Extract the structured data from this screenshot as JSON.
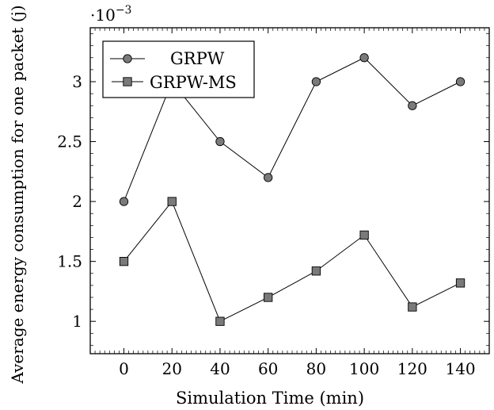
{
  "chart_data": {
    "type": "line",
    "xlabel": "Simulation Time (min)",
    "ylabel": "Average energy consumption for one packet (j)",
    "y_multiplier_label": "·10",
    "y_multiplier_exponent": "−3",
    "xlim": [
      -14,
      152
    ],
    "ylim": [
      0.73,
      3.45
    ],
    "x_ticks": [
      0,
      20,
      40,
      60,
      80,
      100,
      120,
      140
    ],
    "x_tick_labels": [
      "0",
      "20",
      "40",
      "60",
      "80",
      "100",
      "120",
      "140"
    ],
    "y_ticks": [
      1,
      1.5,
      2,
      2.5,
      3
    ],
    "y_tick_labels": [
      "1",
      "1.5",
      "2",
      "2.5",
      "3"
    ],
    "x": [
      0,
      20,
      40,
      60,
      80,
      100,
      120,
      140
    ],
    "grid": false,
    "legend_position": "top-left",
    "series": [
      {
        "name": "GRPW",
        "marker": "circle",
        "color": "#7a7a7a",
        "values": [
          2.0,
          3.0,
          2.5,
          2.2,
          3.0,
          3.2,
          2.8,
          3.0
        ]
      },
      {
        "name": "GRPW-MS",
        "marker": "square",
        "color": "#7a7a7a",
        "values": [
          1.5,
          2.0,
          1.0,
          1.2,
          1.42,
          1.72,
          1.12,
          1.32
        ]
      }
    ]
  }
}
